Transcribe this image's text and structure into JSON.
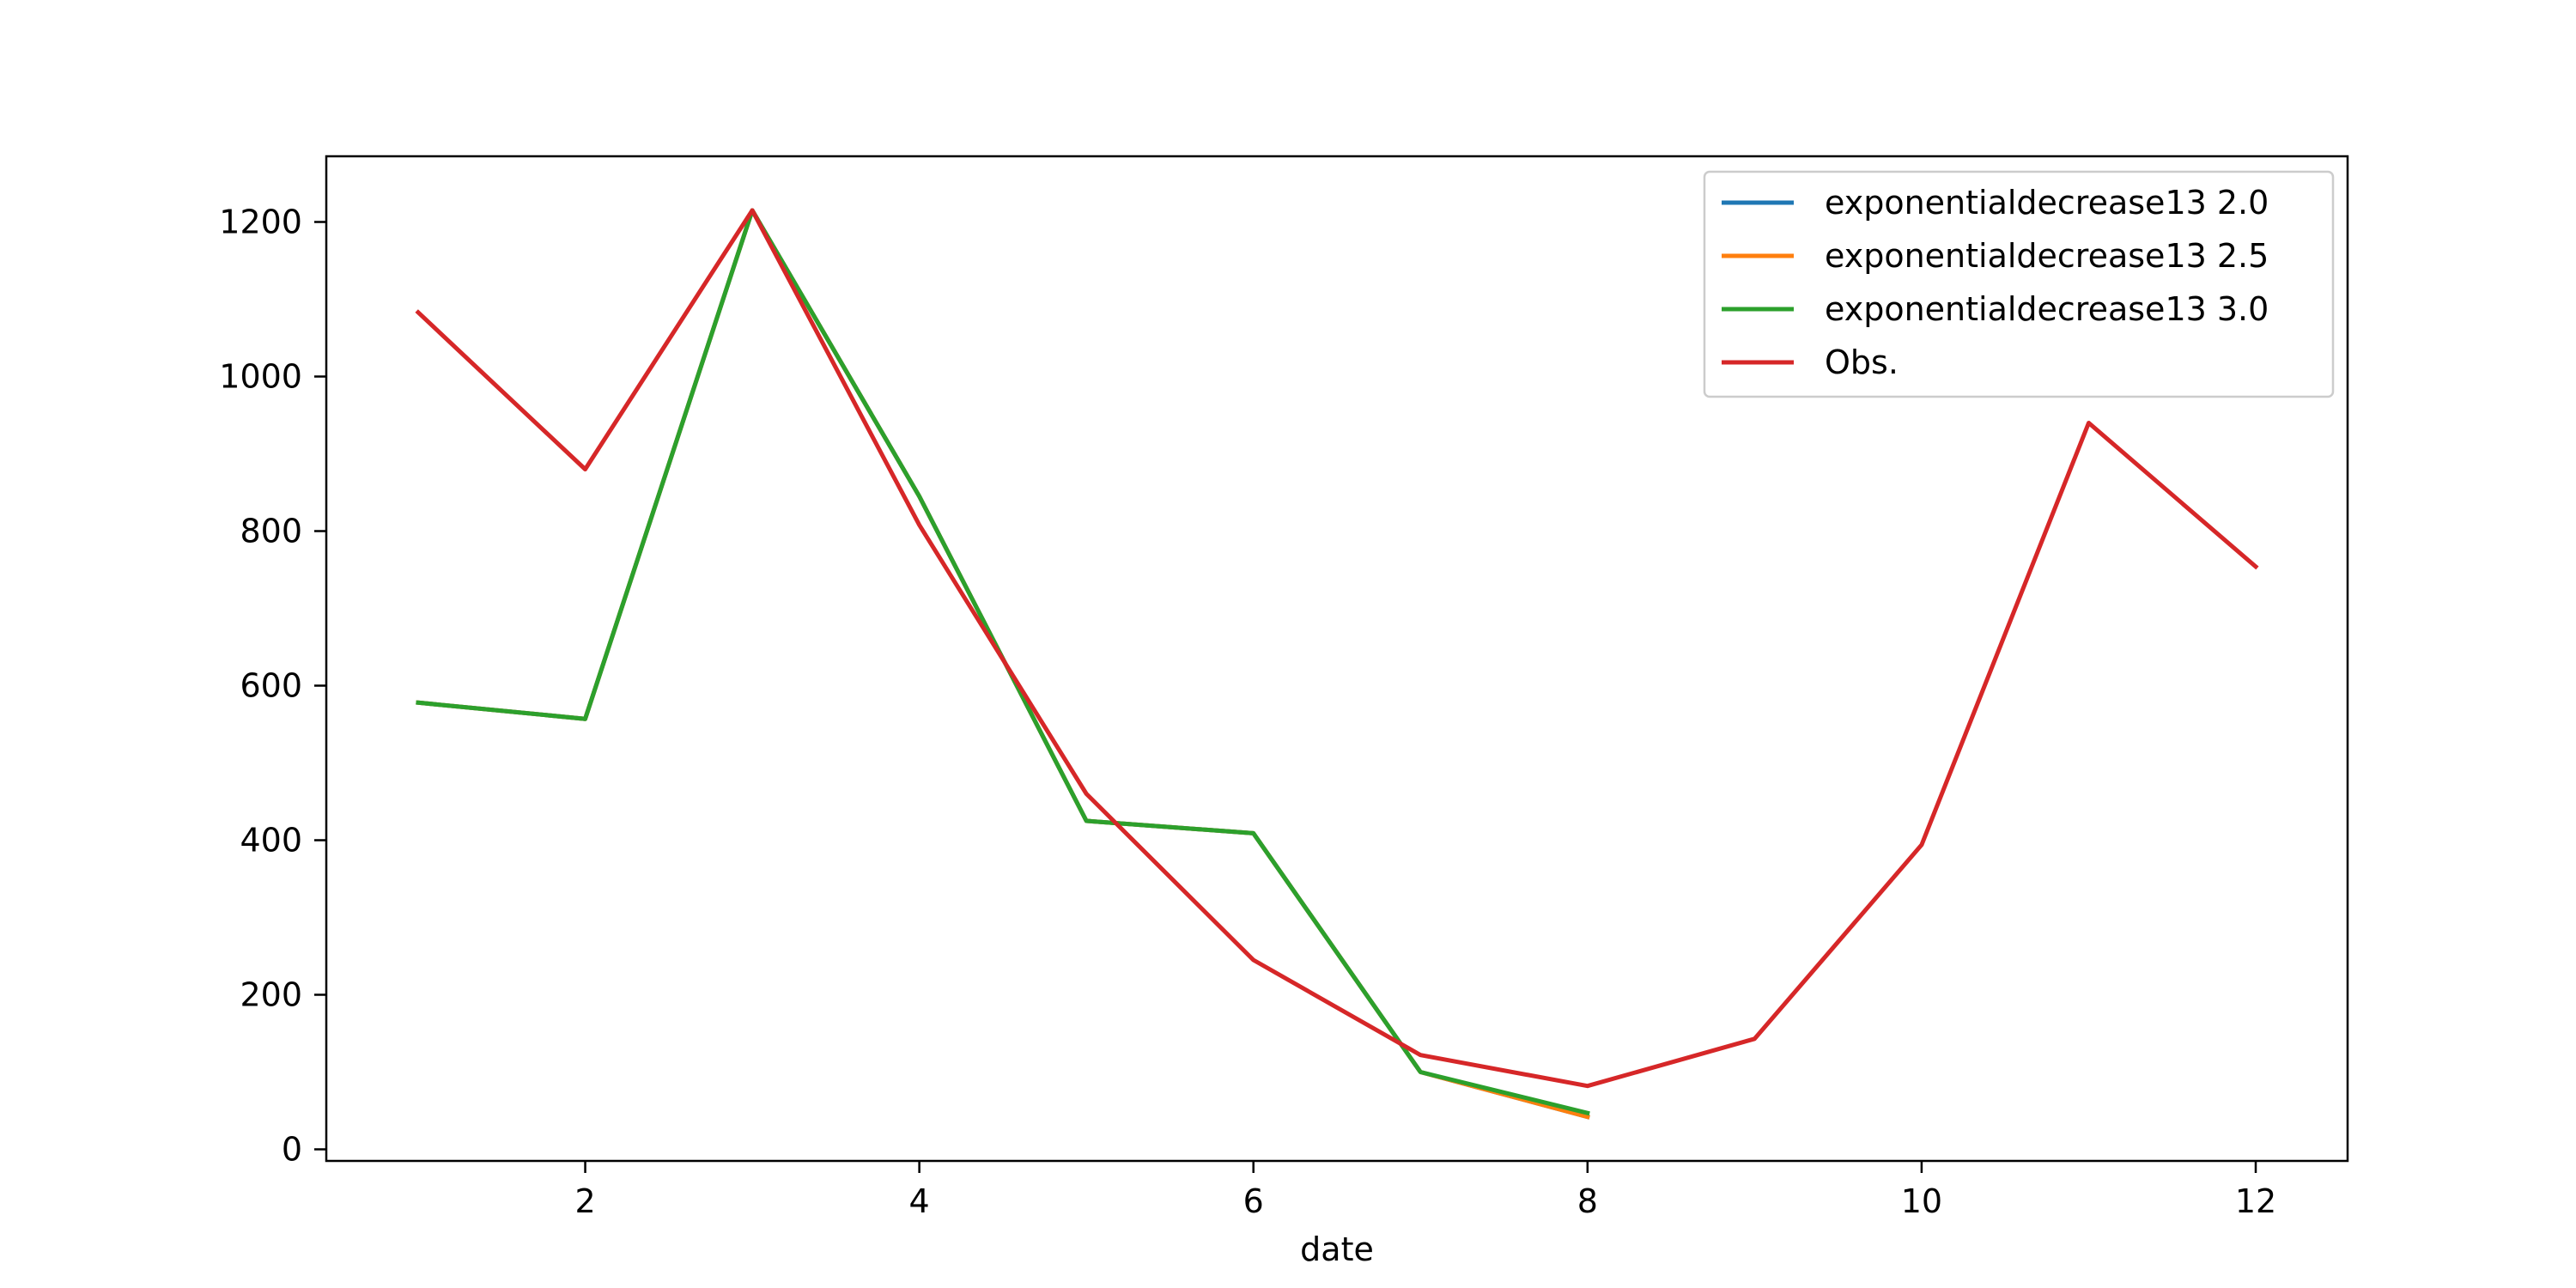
{
  "chart_data": {
    "type": "line",
    "title": "",
    "xlabel": "date",
    "ylabel": "",
    "xlim": [
      0.45,
      12.55
    ],
    "ylim": [
      -15,
      1285
    ],
    "xticks": [
      2,
      4,
      6,
      8,
      10,
      12
    ],
    "yticks": [
      0,
      200,
      400,
      600,
      800,
      1000,
      1200
    ],
    "grid": false,
    "legend_position": "top-right",
    "series": [
      {
        "name": "exponentialdecrease13 2.0",
        "color": "#1f77b4",
        "x": [
          1,
          2,
          3,
          4,
          5,
          6,
          7,
          8
        ],
        "y": [
          578,
          557,
          1215,
          845,
          425,
          409,
          100,
          42
        ]
      },
      {
        "name": "exponentialdecrease13 2.5",
        "color": "#ff7f0e",
        "x": [
          1,
          2,
          3,
          4,
          5,
          6,
          7,
          8
        ],
        "y": [
          578,
          557,
          1215,
          845,
          425,
          409,
          100,
          42
        ]
      },
      {
        "name": "exponentialdecrease13 3.0",
        "color": "#2ca02c",
        "x": [
          1,
          2,
          3,
          4,
          5,
          6,
          7,
          8
        ],
        "y": [
          578,
          557,
          1215,
          845,
          425,
          409,
          100,
          47
        ]
      },
      {
        "name": "Obs.",
        "color": "#d62728",
        "x": [
          1,
          2,
          3,
          4,
          5,
          6,
          7,
          8,
          9,
          10,
          11,
          12
        ],
        "y": [
          1083,
          880,
          1215,
          808,
          460,
          245,
          122,
          82,
          143,
          394,
          940,
          754
        ]
      }
    ]
  }
}
